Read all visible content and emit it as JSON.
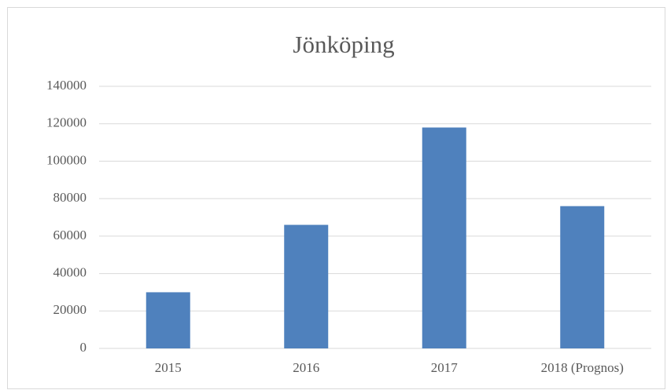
{
  "chart_data": {
    "type": "bar",
    "title": "Jönköping",
    "categories": [
      "2015",
      "2016",
      "2017",
      "2018 (Prognos)"
    ],
    "values": [
      30000,
      66000,
      118000,
      76000
    ],
    "color": "#4f81bd",
    "ylim": [
      0,
      140000
    ],
    "yticks": [
      0,
      20000,
      40000,
      60000,
      80000,
      100000,
      120000,
      140000
    ],
    "grid": true
  }
}
